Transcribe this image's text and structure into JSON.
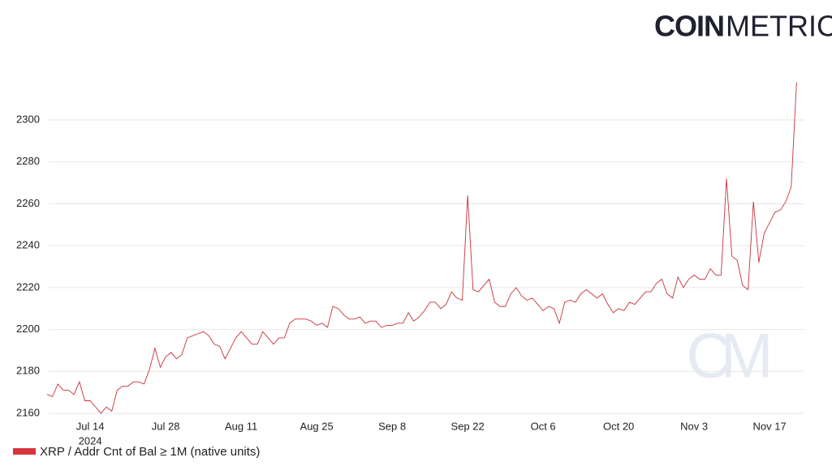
{
  "brand": {
    "bold": "COIN",
    "light": "METRICS",
    "watermark": "CM"
  },
  "chart_data": {
    "type": "line",
    "x": [
      "2024-07-06",
      "2024-07-07",
      "2024-07-08",
      "2024-07-09",
      "2024-07-10",
      "2024-07-11",
      "2024-07-12",
      "2024-07-13",
      "2024-07-14",
      "2024-07-15",
      "2024-07-16",
      "2024-07-17",
      "2024-07-18",
      "2024-07-19",
      "2024-07-20",
      "2024-07-21",
      "2024-07-22",
      "2024-07-23",
      "2024-07-24",
      "2024-07-25",
      "2024-07-26",
      "2024-07-27",
      "2024-07-28",
      "2024-07-29",
      "2024-07-30",
      "2024-07-31",
      "2024-08-01",
      "2024-08-02",
      "2024-08-03",
      "2024-08-04",
      "2024-08-05",
      "2024-08-06",
      "2024-08-07",
      "2024-08-08",
      "2024-08-09",
      "2024-08-10",
      "2024-08-11",
      "2024-08-12",
      "2024-08-13",
      "2024-08-14",
      "2024-08-15",
      "2024-08-16",
      "2024-08-17",
      "2024-08-18",
      "2024-08-19",
      "2024-08-20",
      "2024-08-21",
      "2024-08-22",
      "2024-08-23",
      "2024-08-24",
      "2024-08-25",
      "2024-08-26",
      "2024-08-27",
      "2024-08-28",
      "2024-08-29",
      "2024-08-30",
      "2024-08-31",
      "2024-09-01",
      "2024-09-02",
      "2024-09-03",
      "2024-09-04",
      "2024-09-05",
      "2024-09-06",
      "2024-09-07",
      "2024-09-08",
      "2024-09-09",
      "2024-09-10",
      "2024-09-11",
      "2024-09-12",
      "2024-09-13",
      "2024-09-14",
      "2024-09-15",
      "2024-09-16",
      "2024-09-17",
      "2024-09-18",
      "2024-09-19",
      "2024-09-20",
      "2024-09-21",
      "2024-09-22",
      "2024-09-23",
      "2024-09-24",
      "2024-09-25",
      "2024-09-26",
      "2024-09-27",
      "2024-09-28",
      "2024-09-29",
      "2024-09-30",
      "2024-10-01",
      "2024-10-02",
      "2024-10-03",
      "2024-10-04",
      "2024-10-05",
      "2024-10-06",
      "2024-10-07",
      "2024-10-08",
      "2024-10-09",
      "2024-10-10",
      "2024-10-11",
      "2024-10-12",
      "2024-10-13",
      "2024-10-14",
      "2024-10-15",
      "2024-10-16",
      "2024-10-17",
      "2024-10-18",
      "2024-10-19",
      "2024-10-20",
      "2024-10-21",
      "2024-10-22",
      "2024-10-23",
      "2024-10-24",
      "2024-10-25",
      "2024-10-26",
      "2024-10-27",
      "2024-10-28",
      "2024-10-29",
      "2024-10-30",
      "2024-10-31",
      "2024-11-01",
      "2024-11-02",
      "2024-11-03",
      "2024-11-04",
      "2024-11-05",
      "2024-11-06",
      "2024-11-07",
      "2024-11-08",
      "2024-11-09",
      "2024-11-10",
      "2024-11-11",
      "2024-11-12",
      "2024-11-13",
      "2024-11-14",
      "2024-11-15",
      "2024-11-16",
      "2024-11-17",
      "2024-11-18",
      "2024-11-19",
      "2024-11-20",
      "2024-11-21",
      "2024-11-22"
    ],
    "series": [
      {
        "name": "XRP / Addr Cnt of Bal ≥ 1M (native units)",
        "color": "#c8323a",
        "values": [
          2169,
          2168,
          2174,
          2171,
          2171,
          2169,
          2175,
          2166,
          2166,
          2163,
          2160,
          2163,
          2161,
          2171,
          2173,
          2173,
          2175,
          2175,
          2174,
          2181,
          2191,
          2182,
          2187,
          2189,
          2186,
          2188,
          2196,
          2197,
          2198,
          2199,
          2197,
          2193,
          2192,
          2186,
          2191,
          2196,
          2199,
          2196,
          2193,
          2193,
          2199,
          2196,
          2193,
          2196,
          2196,
          2203,
          2205,
          2205,
          2205,
          2204,
          2202,
          2203,
          2201,
          2211,
          2210,
          2207,
          2205,
          2205,
          2206,
          2203,
          2204,
          2204,
          2201,
          2202,
          2202,
          2203,
          2203,
          2208,
          2204,
          2206,
          2209,
          2213,
          2213,
          2210,
          2212,
          2218,
          2215,
          2214,
          2264,
          2219,
          2218,
          2221,
          2224,
          2213,
          2211,
          2211,
          2217,
          2220,
          2216,
          2214,
          2215,
          2212,
          2209,
          2211,
          2210,
          2203,
          2213,
          2214,
          2213,
          2217,
          2219,
          2217,
          2215,
          2217,
          2212,
          2208,
          2210,
          2209,
          2213,
          2212,
          2215,
          2218,
          2218,
          2222,
          2224,
          2217,
          2215,
          2225,
          2220,
          2224,
          2226,
          2224,
          2224,
          2229,
          2226,
          2226,
          2272,
          2235,
          2233,
          2221,
          2219,
          2261,
          2232,
          2246,
          2251,
          2256,
          2257,
          2261,
          2268,
          2318
        ]
      }
    ],
    "xlim": [
      "2024-07-06",
      "2024-11-23"
    ],
    "xticks": [
      {
        "value": "2024-07-14",
        "label": "Jul 14"
      },
      {
        "value": "2024-07-28",
        "label": "Jul 28"
      },
      {
        "value": "2024-08-11",
        "label": "Aug 11"
      },
      {
        "value": "2024-08-25",
        "label": "Aug 25"
      },
      {
        "value": "2024-09-08",
        "label": "Sep 8"
      },
      {
        "value": "2024-09-22",
        "label": "Sep 22"
      },
      {
        "value": "2024-10-06",
        "label": "Oct 6"
      },
      {
        "value": "2024-10-20",
        "label": "Oct 20"
      },
      {
        "value": "2024-11-03",
        "label": "Nov 3"
      },
      {
        "value": "2024-11-17",
        "label": "Nov 17"
      }
    ],
    "x_year_label": "2024",
    "ylim": [
      2160,
      2320
    ],
    "yticks": [
      2160,
      2180,
      2200,
      2220,
      2240,
      2260,
      2280,
      2300
    ],
    "grid": true
  }
}
